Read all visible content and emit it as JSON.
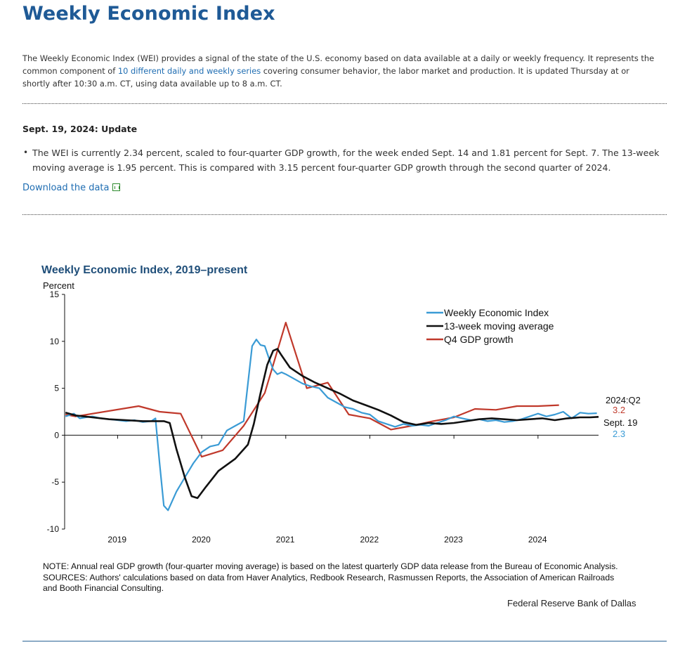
{
  "page": {
    "title": "Weekly Economic Index",
    "intro_before_link": "The Weekly Economic Index (WEI) provides a signal of the state of the U.S. economy based on data available at a daily or weekly frequency. It represents the common component of ",
    "intro_link": "10 different daily and weekly series",
    "intro_after_link": " covering consumer behavior, the labor market and production. It is updated Thursday at or shortly after 10:30 a.m. CT, using data available up to 8 a.m. CT.",
    "update_heading": "Sept. 19, 2024: Update",
    "update_bullet": "The WEI is currently 2.34 percent, scaled to four-quarter GDP growth, for the week ended Sept. 14 and 1.81 percent for Sept. 7. The 13-week moving average is 1.95 percent. This is compared with 3.15 percent four-quarter GDP growth through the second quarter of 2024.",
    "download_label": "Download the data",
    "download_icon": "spreadsheet-icon",
    "note": "NOTE: Annual real GDP growth (four-quarter moving average) is based on the latest quarterly GDP data release from the Bureau of Economic Analysis.",
    "sources": "SOURCES: Authors' calculations based on data from Haver Analytics, Redbook Research, Rasmussen Reports, the Association of American Railroads and Booth Financial Consulting.",
    "credit": "Federal Reserve Bank of Dallas",
    "colors": {
      "heading": "#1f5a96",
      "link": "#1f6db2",
      "wei": "#3a9bd5",
      "ma": "#111111",
      "gdp": "#c0392b"
    }
  },
  "chart_data": {
    "type": "line",
    "title": "Weekly Economic Index, 2019–present",
    "ylabel": "Percent",
    "ylim": [
      -10,
      15
    ],
    "yticks": [
      -10,
      -5,
      0,
      5,
      10,
      15
    ],
    "ytick_labels": [
      "-10",
      "-5",
      "0",
      "5",
      "10",
      "15"
    ],
    "xlim": [
      2018.37,
      2024.72
    ],
    "xticks": [
      2019,
      2020,
      2021,
      2022,
      2023,
      2024
    ],
    "xtick_labels": [
      "2019",
      "2020",
      "2021",
      "2022",
      "2023",
      "2024"
    ],
    "legend_position": "top-right",
    "series": [
      {
        "name": "Weekly Economic Index",
        "color": "#3a9bd5",
        "x": [
          2018.38,
          2018.48,
          2018.55,
          2018.62,
          2018.7,
          2018.8,
          2018.9,
          2019.0,
          2019.1,
          2019.2,
          2019.3,
          2019.4,
          2019.45,
          2019.5,
          2019.55,
          2019.6,
          2019.65,
          2019.7,
          2019.8,
          2019.9,
          2020.0,
          2020.05,
          2020.1,
          2020.2,
          2020.3,
          2020.4,
          2020.5,
          2020.6,
          2020.65,
          2020.7,
          2020.75,
          2020.8,
          2020.85,
          2020.9,
          2020.95,
          2021.0,
          2021.1,
          2021.2,
          2021.3,
          2021.4,
          2021.5,
          2021.6,
          2021.7,
          2021.8,
          2021.9,
          2022.0,
          2022.1,
          2022.2,
          2022.3,
          2022.4,
          2022.5,
          2022.6,
          2022.7,
          2022.8,
          2022.9,
          2023.0,
          2023.1,
          2023.2,
          2023.3,
          2023.4,
          2023.5,
          2023.6,
          2023.7,
          2023.8,
          2023.9,
          2024.0,
          2024.1,
          2024.2,
          2024.3,
          2024.4,
          2024.5,
          2024.6,
          2024.7
        ],
        "y": [
          2.0,
          2.3,
          1.8,
          1.9,
          2.0,
          1.8,
          1.7,
          1.6,
          1.5,
          1.6,
          1.4,
          1.5,
          1.8,
          -3.0,
          -7.5,
          -8.0,
          -7.0,
          -6.0,
          -4.5,
          -3.0,
          -1.8,
          -1.5,
          -1.2,
          -1.0,
          0.5,
          1.0,
          1.5,
          9.5,
          10.2,
          9.6,
          9.5,
          8.2,
          7.0,
          6.5,
          6.7,
          6.5,
          6.0,
          5.5,
          5.2,
          5.0,
          4.0,
          3.5,
          3.0,
          2.8,
          2.4,
          2.2,
          1.5,
          1.2,
          0.9,
          1.2,
          1.0,
          1.1,
          1.0,
          1.3,
          1.6,
          2.0,
          1.8,
          1.6,
          1.7,
          1.5,
          1.6,
          1.4,
          1.5,
          1.7,
          2.0,
          2.3,
          2.0,
          2.2,
          2.5,
          1.8,
          2.4,
          2.3,
          2.34
        ]
      },
      {
        "name": "13-week moving average",
        "color": "#111111",
        "x": [
          2018.38,
          2018.5,
          2018.7,
          2018.9,
          2019.1,
          2019.3,
          2019.45,
          2019.55,
          2019.62,
          2019.7,
          2019.8,
          2019.88,
          2019.95,
          2020.05,
          2020.2,
          2020.4,
          2020.55,
          2020.62,
          2020.7,
          2020.78,
          2020.85,
          2020.9,
          2020.95,
          2021.05,
          2021.2,
          2021.35,
          2021.5,
          2021.65,
          2021.8,
          2021.95,
          2022.1,
          2022.25,
          2022.4,
          2022.55,
          2022.7,
          2022.85,
          2023.0,
          2023.15,
          2023.3,
          2023.45,
          2023.6,
          2023.75,
          2023.9,
          2024.05,
          2024.2,
          2024.35,
          2024.5,
          2024.62,
          2024.72
        ],
        "y": [
          2.4,
          2.1,
          1.9,
          1.7,
          1.6,
          1.5,
          1.5,
          1.5,
          1.3,
          -1.5,
          -4.5,
          -6.5,
          -6.7,
          -5.5,
          -3.8,
          -2.5,
          -1.0,
          1.2,
          4.5,
          7.5,
          9.0,
          9.2,
          8.5,
          7.2,
          6.3,
          5.6,
          5.0,
          4.4,
          3.7,
          3.2,
          2.7,
          2.1,
          1.4,
          1.1,
          1.3,
          1.2,
          1.3,
          1.5,
          1.7,
          1.8,
          1.7,
          1.6,
          1.7,
          1.8,
          1.6,
          1.8,
          1.9,
          1.9,
          1.95
        ]
      },
      {
        "name": "Q4 GDP growth",
        "color": "#c0392b",
        "x": [
          2018.38,
          2018.5,
          2019.25,
          2019.5,
          2019.75,
          2020.0,
          2020.25,
          2020.5,
          2020.75,
          2021.0,
          2021.25,
          2021.5,
          2021.75,
          2022.0,
          2022.25,
          2022.5,
          2022.75,
          2023.0,
          2023.25,
          2023.5,
          2023.75,
          2024.0,
          2024.25
        ],
        "y": [
          2.2,
          2.0,
          3.1,
          2.5,
          2.3,
          -2.3,
          -1.6,
          1.0,
          4.5,
          12.0,
          5.0,
          5.6,
          2.2,
          1.8,
          0.6,
          1.0,
          1.5,
          1.9,
          2.8,
          2.7,
          3.1,
          3.1,
          3.2
        ]
      }
    ],
    "annotations": {
      "gdp_label": "2024:Q2",
      "gdp_value": "3.2",
      "wei_label": "Sept. 19",
      "wei_value": "2.3"
    }
  }
}
